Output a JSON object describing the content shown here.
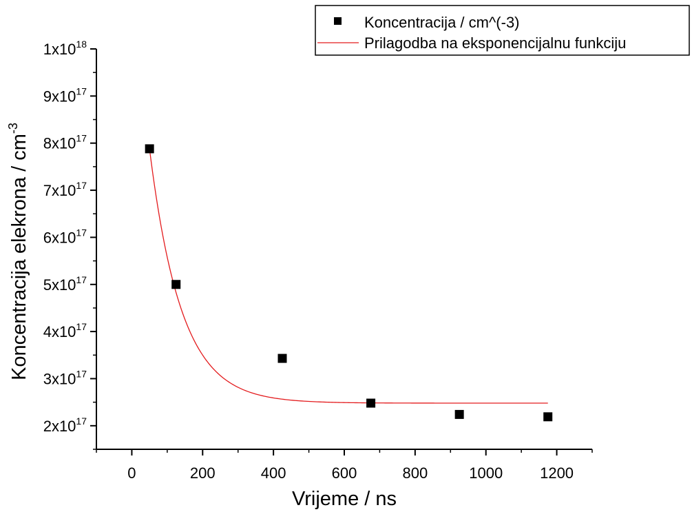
{
  "chart_data": {
    "type": "scatter",
    "title": "",
    "xlabel": "Vrijeme / ns",
    "ylabel": "Koncentracija elekrona / cm",
    "ylabel_superscript": "-3",
    "xlim": [
      -100,
      1300
    ],
    "ylim": [
      1.5e+17,
      1e+18
    ],
    "x_ticks": [
      0,
      200,
      400,
      600,
      800,
      1000,
      1200
    ],
    "x_tick_labels": [
      "0",
      "200",
      "400",
      "600",
      "800",
      "1000",
      "1200"
    ],
    "y_ticks": [
      2e+17,
      3e+17,
      4e+17,
      5e+17,
      6e+17,
      7e+17,
      8e+17,
      9e+17,
      1e+18
    ],
    "y_tick_labels": [
      {
        "mantissa": "2x10",
        "exp": "17"
      },
      {
        "mantissa": "3x10",
        "exp": "17"
      },
      {
        "mantissa": "4x10",
        "exp": "17"
      },
      {
        "mantissa": "5x10",
        "exp": "17"
      },
      {
        "mantissa": "6x10",
        "exp": "17"
      },
      {
        "mantissa": "7x10",
        "exp": "17"
      },
      {
        "mantissa": "8x10",
        "exp": "17"
      },
      {
        "mantissa": "9x10",
        "exp": "17"
      },
      {
        "mantissa": "1x10",
        "exp": "18"
      }
    ],
    "grid": false,
    "legend_position": "top-right",
    "series": [
      {
        "name": "Koncentracija / cm^(-3)",
        "kind": "scatter",
        "marker": "square",
        "color": "#000000",
        "x": [
          50,
          125,
          425,
          675,
          925,
          1175
        ],
        "y": [
          7.88e+17,
          5e+17,
          3.43e+17,
          2.48e+17,
          2.24e+17,
          2.19e+17
        ]
      },
      {
        "name": "Prilagodba na eksponencijalnu funkciju",
        "kind": "line",
        "color": "#e31a1c",
        "function": "y0 + A*exp(-(x-50)/t1)",
        "y0": 2.48e+17,
        "A": 5.4e+17,
        "t1": 90,
        "x_range": [
          50,
          1175
        ]
      }
    ]
  }
}
